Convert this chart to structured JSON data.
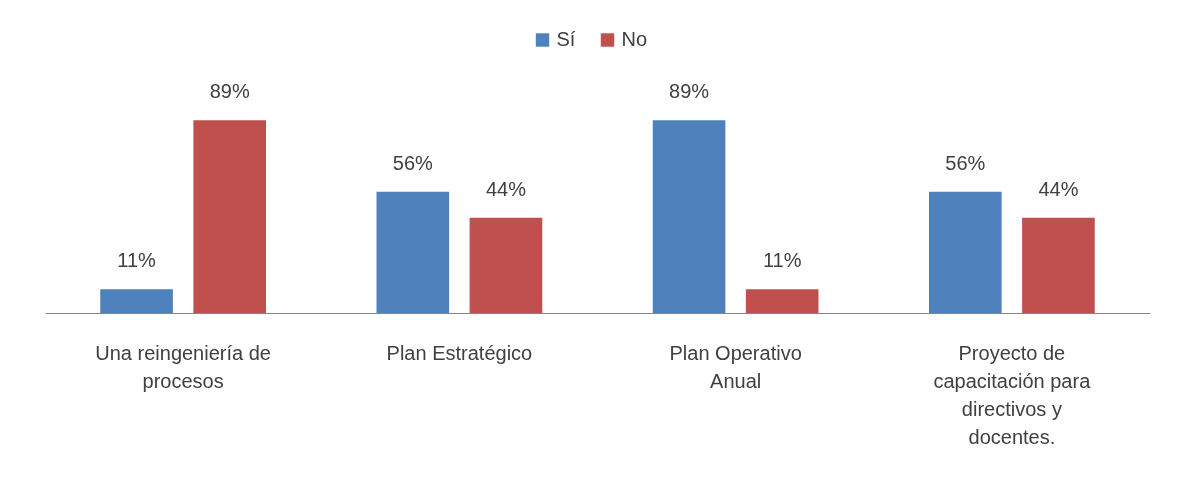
{
  "chart_data": {
    "type": "bar",
    "categories": [
      "Una reingeniería de procesos",
      "Plan Estratégico",
      "Plan Operativo Anual",
      "Proyecto de capacitación para directivos y docentes."
    ],
    "series": [
      {
        "name": "Sí",
        "color": "#4f81bd",
        "values": [
          11,
          56,
          89,
          56
        ],
        "value_labels": [
          "11%",
          "56%",
          "89%",
          "56%"
        ]
      },
      {
        "name": "No",
        "color": "#c0504d",
        "values": [
          89,
          44,
          11,
          44
        ],
        "value_labels": [
          "89%",
          "44%",
          "11%",
          "44%"
        ]
      }
    ],
    "legend": "top"
  }
}
